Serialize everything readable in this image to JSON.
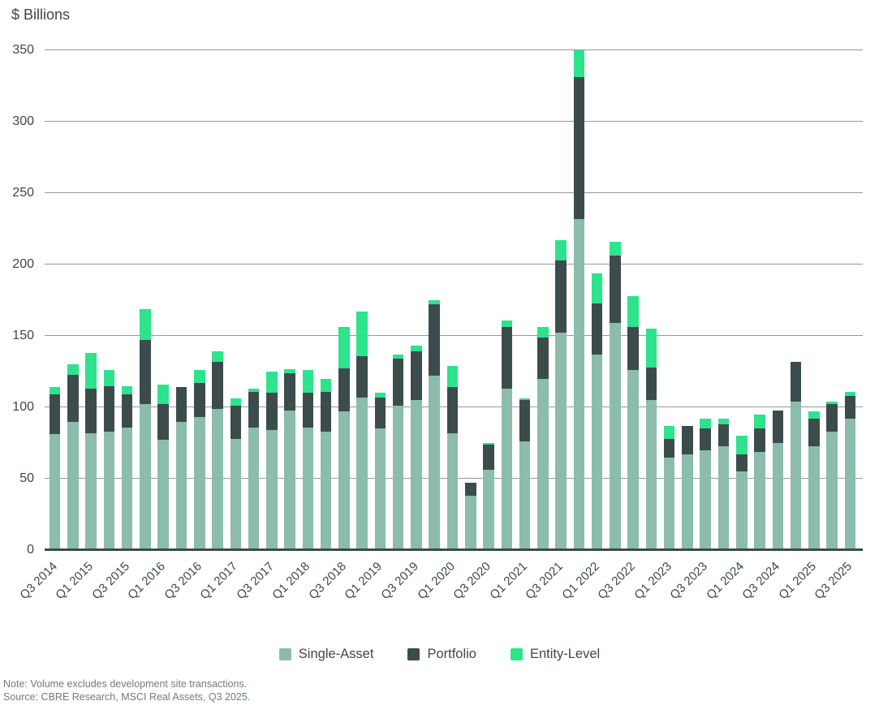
{
  "header": {
    "title": "$ Billions"
  },
  "chart_data": {
    "type": "bar",
    "stacked": true,
    "title": "$ Billions",
    "xlabel": "",
    "ylabel": "$ Billions",
    "ylim": [
      0,
      350
    ],
    "yticks": [
      0,
      50,
      100,
      150,
      200,
      250,
      300,
      350
    ],
    "grid": true,
    "legend_position": "bottom",
    "categories": [
      "Q3 2014",
      "Q4 2014",
      "Q1 2015",
      "Q2 2015",
      "Q3 2015",
      "Q4 2015",
      "Q1 2016",
      "Q2 2016",
      "Q3 2016",
      "Q4 2016",
      "Q1 2017",
      "Q2 2017",
      "Q3 2017",
      "Q4 2017",
      "Q1 2018",
      "Q2 2018",
      "Q3 2018",
      "Q4 2018",
      "Q1 2019",
      "Q2 2019",
      "Q3 2019",
      "Q4 2019",
      "Q1 2020",
      "Q2 2020",
      "Q3 2020",
      "Q4 2020",
      "Q1 2021",
      "Q2 2021",
      "Q3 2021",
      "Q4 2021",
      "Q1 2022",
      "Q2 2022",
      "Q3 2022",
      "Q4 2022",
      "Q1 2023",
      "Q2 2023",
      "Q3 2023",
      "Q4 2023",
      "Q1 2024",
      "Q2 2024",
      "Q3 2024",
      "Q4 2024",
      "Q1 2025",
      "Q2 2025",
      "Q3 2025"
    ],
    "xtick_labels": [
      "Q3 2014",
      "Q1 2015",
      "Q3 2015",
      "Q1 2016",
      "Q3 2016",
      "Q1 2017",
      "Q3 2017",
      "Q1 2018",
      "Q3 2018",
      "Q1 2019",
      "Q3 2019",
      "Q1 2020",
      "Q3 2020",
      "Q1 2021",
      "Q3 2021",
      "Q1 2022",
      "Q3 2022",
      "Q1 2023",
      "Q3 2023",
      "Q1 2024",
      "Q3 2024",
      "Q1 2025",
      "Q3 2025"
    ],
    "series": [
      {
        "name": "Single-Asset",
        "color": "#8CBCAB",
        "values": [
          81,
          90,
          82,
          83,
          86,
          102,
          77,
          90,
          93,
          99,
          78,
          86,
          84,
          98,
          86,
          83,
          97,
          107,
          85,
          101,
          105,
          122,
          82,
          38,
          56,
          113,
          76,
          120,
          152,
          232,
          137,
          159,
          126,
          105,
          65,
          67,
          70,
          73,
          55,
          69,
          75,
          104,
          73,
          83,
          92
        ]
      },
      {
        "name": "Portfolio",
        "color": "#3C4C4D",
        "values": [
          28,
          33,
          31,
          32,
          23,
          45,
          25,
          24,
          24,
          33,
          23,
          25,
          26,
          26,
          24,
          28,
          30,
          29,
          22,
          33,
          34,
          50,
          32,
          9,
          18,
          43,
          29,
          29,
          51,
          99,
          36,
          47,
          30,
          23,
          13,
          20,
          15,
          15,
          12,
          16,
          23,
          28,
          19,
          19,
          16
        ]
      },
      {
        "name": "Entity-Level",
        "color": "#2DE38C",
        "values": [
          5,
          7,
          25,
          11,
          6,
          22,
          14,
          0,
          9,
          7,
          5,
          2,
          15,
          3,
          16,
          9,
          29,
          31,
          3,
          3,
          4,
          3,
          15,
          0,
          1,
          5,
          1,
          7,
          14,
          19,
          21,
          10,
          22,
          27,
          9,
          0,
          7,
          4,
          13,
          10,
          0,
          0,
          5,
          2,
          3
        ]
      }
    ],
    "colors": {
      "gridline": "#94999C",
      "baseline": "#3C4B4C",
      "text": "#3D474A",
      "note": "#6F7B7E",
      "background": "#FFFFFF"
    }
  },
  "footer": {
    "note": "Note: Volume excludes development site transactions.",
    "source": "Source: CBRE Research, MSCI Real Assets, Q3 2025."
  }
}
